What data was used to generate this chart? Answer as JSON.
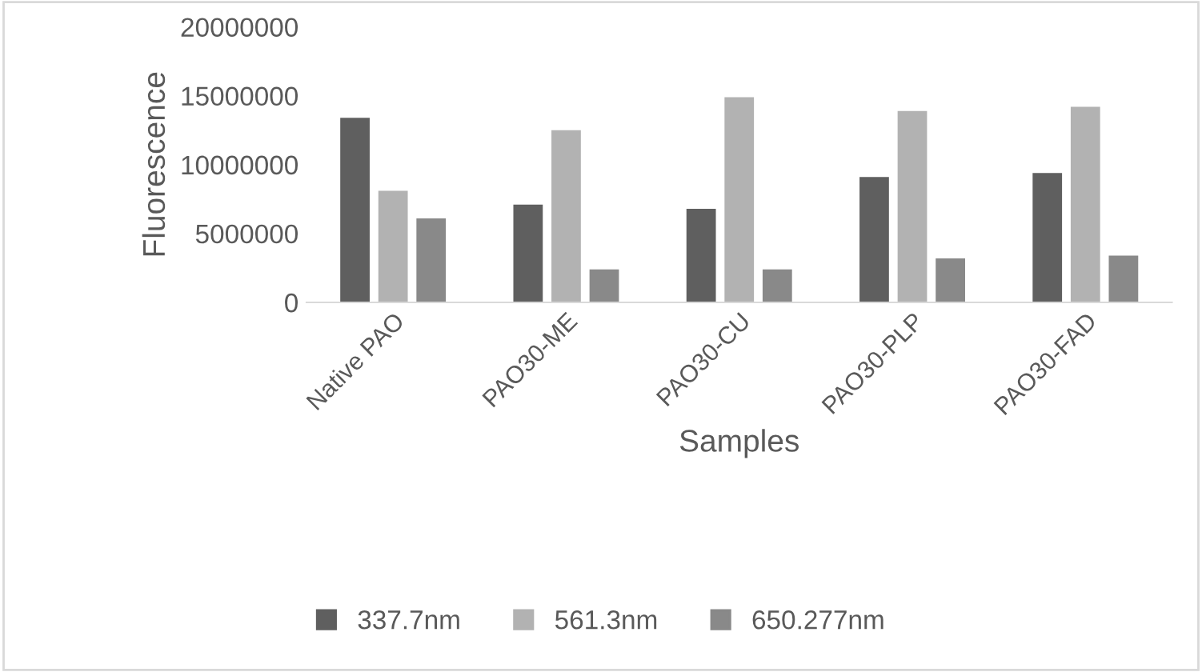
{
  "chart_data": {
    "type": "bar",
    "xlabel": "Samples",
    "ylabel": "Fluorescence",
    "categories": [
      "Native PAO",
      "PAO30-ME",
      "PAO30-CU",
      "PAO30-PLP",
      "PAO30-FAD"
    ],
    "series": [
      {
        "name": "337.7nm",
        "color": "#5f5f5f",
        "values": [
          13400000,
          7100000,
          6800000,
          9100000,
          9400000
        ]
      },
      {
        "name": "561.3nm",
        "color": "#b2b2b2",
        "values": [
          8100000,
          12500000,
          14900000,
          13900000,
          14200000
        ]
      },
      {
        "name": "650.277nm",
        "color": "#898989",
        "values": [
          6100000,
          2400000,
          2400000,
          3200000,
          3400000
        ]
      }
    ],
    "ylim": [
      0,
      20000000
    ],
    "yticks": [
      0,
      5000000,
      10000000,
      15000000,
      20000000
    ],
    "grid": false,
    "legend": "bottom"
  }
}
